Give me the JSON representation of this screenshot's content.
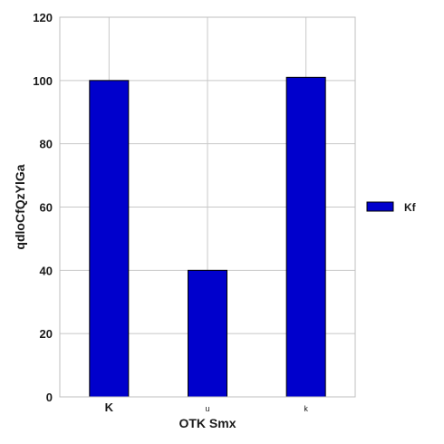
{
  "chart_data": {
    "type": "bar",
    "categories": [
      "K",
      "u",
      "k"
    ],
    "series": [
      {
        "name": "Kf",
        "values": [
          100,
          40,
          101
        ],
        "color": "#0000cc"
      }
    ],
    "xlabel": "OTK Smx",
    "ylabel": "qdloCfQzYlGa",
    "ylim": [
      0,
      120
    ],
    "yticks": [
      0,
      20,
      40,
      60,
      80,
      100,
      120
    ],
    "grid": true,
    "legend_position": "right"
  }
}
